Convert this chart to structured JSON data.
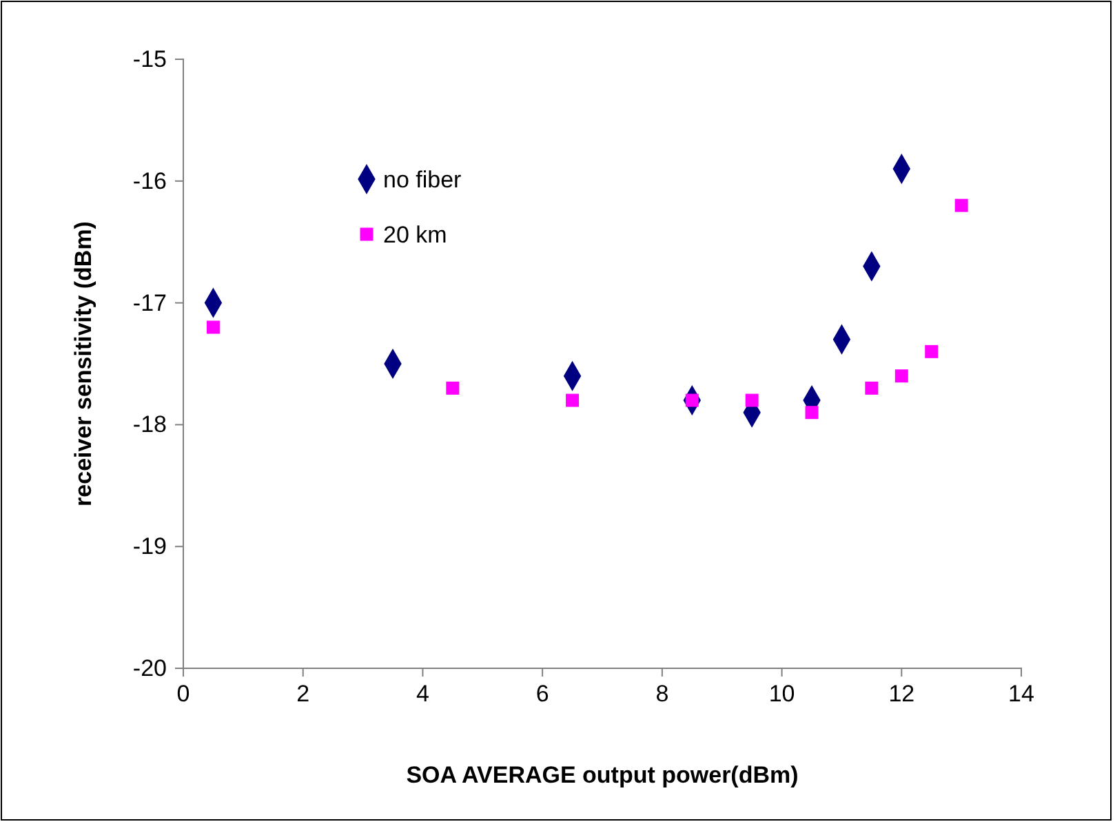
{
  "chart_data": {
    "type": "scatter",
    "xlabel": "SOA AVERAGE output power(dBm)",
    "ylabel": "receiver sensitivity (dBm)",
    "xlim": [
      0,
      14
    ],
    "xticks": [
      0,
      2,
      4,
      6,
      8,
      10,
      12,
      14
    ],
    "ylim": [
      -20,
      -15
    ],
    "yticks": [
      -20,
      -19,
      -18,
      -17,
      -16,
      -15
    ],
    "grid": false,
    "legend": "top left",
    "series": [
      {
        "name": "no fiber",
        "color": "#000080",
        "marker": "diamond",
        "x": [
          0.5,
          3.5,
          6.5,
          8.5,
          9.5,
          10.5,
          11,
          11.5,
          12
        ],
        "values": [
          -17.0,
          -17.5,
          -17.6,
          -17.8,
          -17.9,
          -17.8,
          -17.3,
          -16.7,
          -15.9
        ]
      },
      {
        "name": "20 km",
        "color": "#ff00ff",
        "marker": "square",
        "x": [
          0.5,
          4.5,
          6.5,
          8.5,
          9.5,
          10.5,
          11.5,
          12,
          12.5,
          13
        ],
        "values": [
          -17.2,
          -17.7,
          -17.8,
          -17.8,
          -17.8,
          -17.9,
          -17.7,
          -17.6,
          -17.4,
          -16.2
        ]
      }
    ]
  }
}
